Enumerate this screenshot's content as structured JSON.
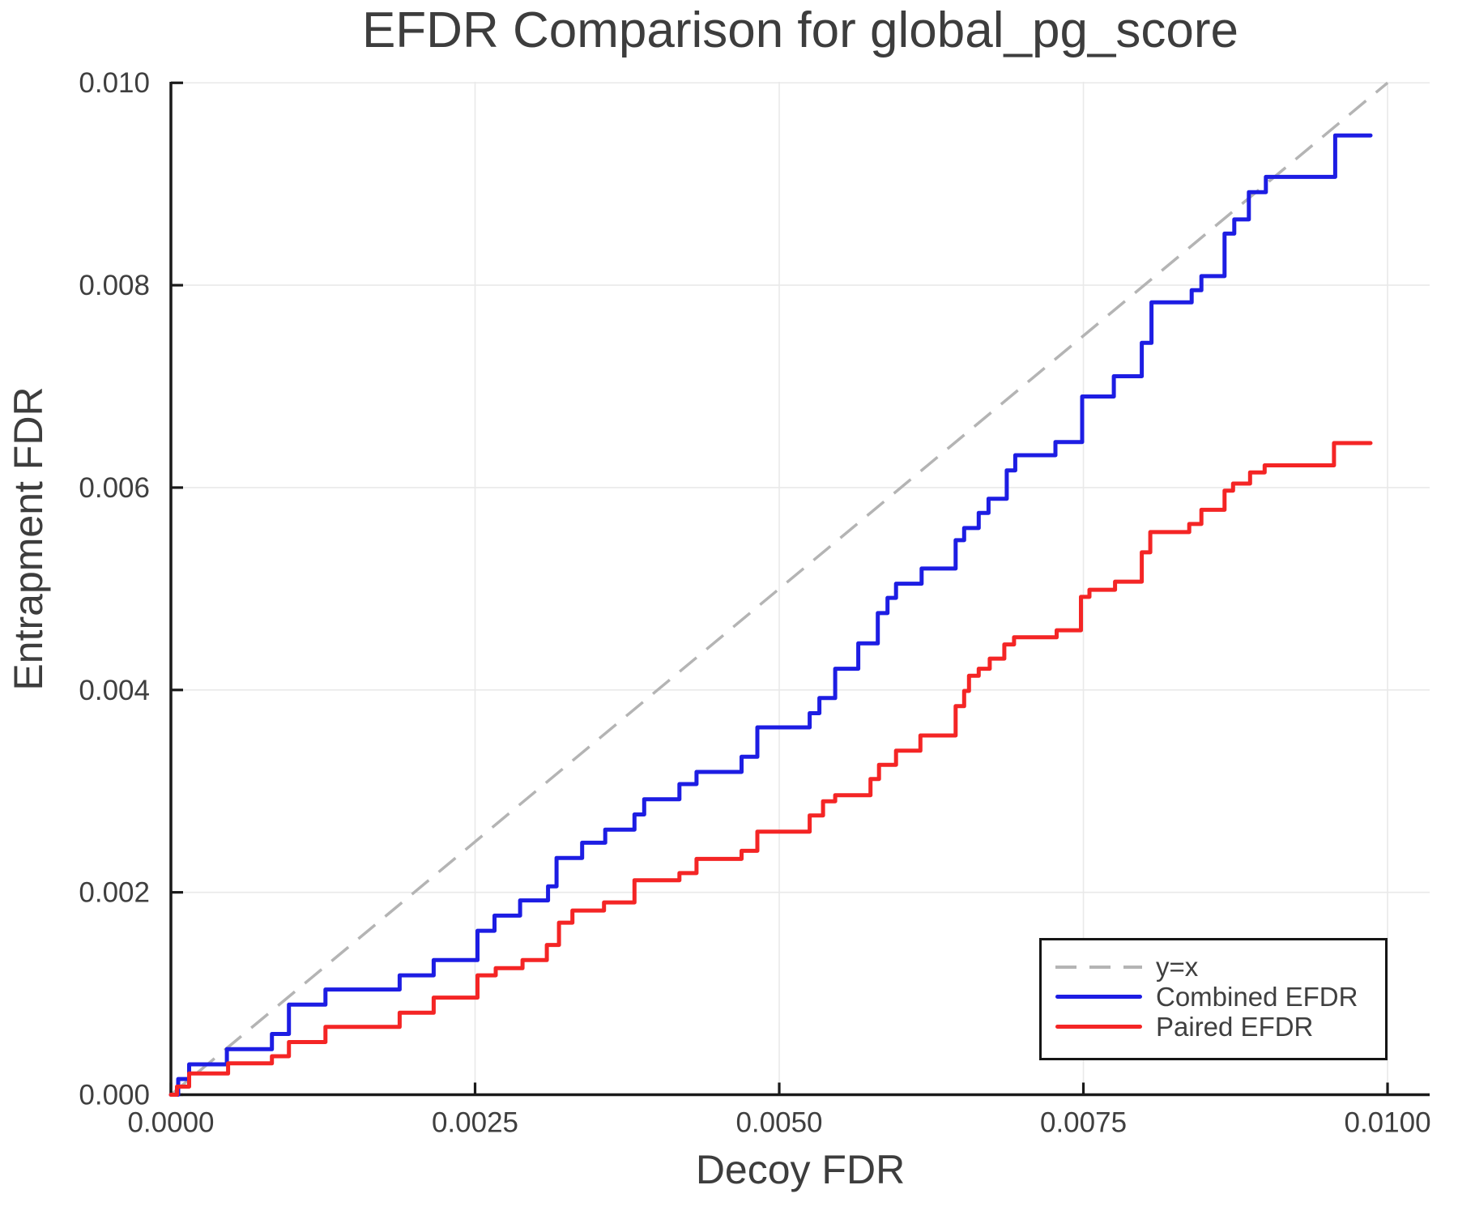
{
  "chart_data": {
    "type": "line",
    "title": "EFDR Comparison for global_pg_score",
    "xlabel": "Decoy FDR",
    "ylabel": "Entrapment FDR",
    "xlim": [
      0,
      0.010346
    ],
    "ylim": [
      0,
      0.01001
    ],
    "grid": true,
    "grid_color": "#e9e9e9",
    "spine_color": "#1a1a1a",
    "text_color": "#3f3f3f",
    "x_ticks": {
      "values": [
        0,
        0.0025,
        0.005,
        0.0075,
        0.01
      ],
      "labels": [
        "0.0000",
        "0.0025",
        "0.0050",
        "0.0075",
        "0.0100"
      ]
    },
    "y_ticks": {
      "values": [
        0,
        0.002,
        0.004,
        0.006,
        0.008,
        0.01
      ],
      "labels": [
        "0.000",
        "0.002",
        "0.004",
        "0.006",
        "0.008",
        "0.010"
      ]
    },
    "series": [
      {
        "name": "y=x",
        "kind": "diagonal",
        "color": "#b4b4b4",
        "dashed": true,
        "x": [
          0,
          0.01
        ],
        "y": [
          0,
          0.01
        ]
      },
      {
        "name": "Combined EFDR",
        "kind": "step",
        "color": "#1d1de3",
        "start": [
          0,
          0
        ],
        "end_x": 0.00986,
        "steps": [
          [
            6e-05,
            0.000155
          ],
          [
            0.00015,
            0.0003
          ],
          [
            0.00046,
            0.00045
          ],
          [
            0.00083,
            0.0006
          ],
          [
            0.00097,
            0.00089
          ],
          [
            0.00127,
            0.00104
          ],
          [
            0.00188,
            0.00118
          ],
          [
            0.00216,
            0.00133
          ],
          [
            0.00252,
            0.00162
          ],
          [
            0.00266,
            0.00177
          ],
          [
            0.00287,
            0.00192
          ],
          [
            0.0031,
            0.00206
          ],
          [
            0.00317,
            0.00234
          ],
          [
            0.00338,
            0.00249
          ],
          [
            0.00357,
            0.00262
          ],
          [
            0.00381,
            0.00277
          ],
          [
            0.00389,
            0.00292
          ],
          [
            0.00418,
            0.00307
          ],
          [
            0.00432,
            0.00319
          ],
          [
            0.00469,
            0.00334
          ],
          [
            0.00482,
            0.00363
          ],
          [
            0.00525,
            0.00377
          ],
          [
            0.00533,
            0.00392
          ],
          [
            0.00546,
            0.00421
          ],
          [
            0.00565,
            0.00446
          ],
          [
            0.00581,
            0.00476
          ],
          [
            0.00589,
            0.00491
          ],
          [
            0.00596,
            0.00505
          ],
          [
            0.00617,
            0.0052
          ],
          [
            0.00645,
            0.00548
          ],
          [
            0.00652,
            0.0056
          ],
          [
            0.00664,
            0.00575
          ],
          [
            0.00672,
            0.00589
          ],
          [
            0.00687,
            0.00617
          ],
          [
            0.00694,
            0.00632
          ],
          [
            0.00727,
            0.00645
          ],
          [
            0.00749,
            0.0069
          ],
          [
            0.00775,
            0.0071
          ],
          [
            0.00798,
            0.00743
          ],
          [
            0.00806,
            0.00783
          ],
          [
            0.00839,
            0.00795
          ],
          [
            0.00847,
            0.00809
          ],
          [
            0.00866,
            0.00851
          ],
          [
            0.00874,
            0.00865
          ],
          [
            0.00886,
            0.00892
          ],
          [
            0.009,
            0.00907
          ],
          [
            0.00957,
            0.00948
          ]
        ]
      },
      {
        "name": "Paired EFDR",
        "kind": "step",
        "color": "#f42525",
        "start": [
          0,
          0
        ],
        "end_x": 0.00986,
        "steps": [
          [
            5e-05,
            8e-05
          ],
          [
            0.00015,
            0.00021
          ],
          [
            0.00047,
            0.00031
          ],
          [
            0.00083,
            0.00038
          ],
          [
            0.00097,
            0.00052
          ],
          [
            0.00127,
            0.00067
          ],
          [
            0.00188,
            0.00081
          ],
          [
            0.00216,
            0.00096
          ],
          [
            0.00252,
            0.00118
          ],
          [
            0.00267,
            0.00125
          ],
          [
            0.00289,
            0.00133
          ],
          [
            0.00309,
            0.00148
          ],
          [
            0.00319,
            0.0017
          ],
          [
            0.0033,
            0.00182
          ],
          [
            0.00356,
            0.0019
          ],
          [
            0.00381,
            0.00212
          ],
          [
            0.00418,
            0.00219
          ],
          [
            0.00432,
            0.00233
          ],
          [
            0.00469,
            0.00241
          ],
          [
            0.00482,
            0.0026
          ],
          [
            0.00525,
            0.00276
          ],
          [
            0.00536,
            0.0029
          ],
          [
            0.00546,
            0.00296
          ],
          [
            0.00575,
            0.00312
          ],
          [
            0.00582,
            0.00326
          ],
          [
            0.00596,
            0.0034
          ],
          [
            0.00616,
            0.00355
          ],
          [
            0.00645,
            0.00384
          ],
          [
            0.00652,
            0.00399
          ],
          [
            0.00656,
            0.00414
          ],
          [
            0.00664,
            0.00421
          ],
          [
            0.00673,
            0.00431
          ],
          [
            0.00685,
            0.00445
          ],
          [
            0.00693,
            0.00452
          ],
          [
            0.00728,
            0.00459
          ],
          [
            0.00748,
            0.00492
          ],
          [
            0.00755,
            0.00499
          ],
          [
            0.00776,
            0.00507
          ],
          [
            0.00798,
            0.00536
          ],
          [
            0.00805,
            0.00556
          ],
          [
            0.00837,
            0.00564
          ],
          [
            0.00847,
            0.00578
          ],
          [
            0.00866,
            0.00597
          ],
          [
            0.00873,
            0.00604
          ],
          [
            0.00887,
            0.00615
          ],
          [
            0.00899,
            0.00622
          ],
          [
            0.00956,
            0.00644
          ]
        ]
      }
    ],
    "legend": {
      "position": "lower right",
      "items": [
        {
          "label": "y=x",
          "swatch": "dashed",
          "color": "#b4b4b4"
        },
        {
          "label": "Combined EFDR",
          "swatch": "solid",
          "color": "#1d1de3"
        },
        {
          "label": "Paired EFDR",
          "swatch": "solid",
          "color": "#f42525"
        }
      ]
    }
  }
}
